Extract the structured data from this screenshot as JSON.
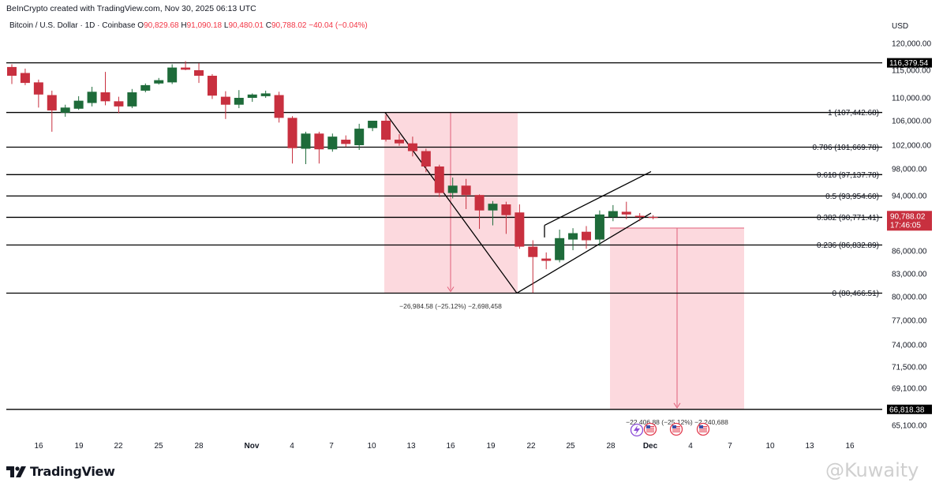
{
  "header": {
    "credit": "BeInCrypto created with TradingView.com, Nov 30, 2025 06:13 UTC",
    "symbol": "Bitcoin / U.S. Dollar · 1D · Coinbase",
    "open_label": "O",
    "open": "90,829.68",
    "high_label": "H",
    "high": "91,090.18",
    "low_label": "L",
    "low": "90,480.01",
    "close_label": "C",
    "close": "90,788.02",
    "change": "−40.04 (−0.04%)"
  },
  "brand": "TradingView",
  "watermark": "@Kuwaity",
  "colors": {
    "up": "#1e6b3a",
    "down": "#c8303f",
    "range_fill": "#fcd9de",
    "range_arrow": "#e0607a",
    "line": "#000000",
    "price_tag": "#c8303f"
  },
  "chart_data": {
    "type": "candlestick",
    "currency_label": "USD",
    "y_ticks": [
      "120,000.00",
      "115,000.00",
      "110,000.00",
      "106,000.00",
      "102,000.00",
      "98,000.00",
      "94,000.00",
      "90,000.00",
      "86,000.00",
      "83,000.00",
      "80,000.00",
      "77,000.00",
      "74,000.00",
      "71,500.00",
      "69,100.00",
      "65,100.00"
    ],
    "x_ticks": [
      "16",
      "19",
      "22",
      "25",
      "28",
      "Nov",
      "4",
      "7",
      "10",
      "13",
      "16",
      "19",
      "22",
      "25",
      "28",
      "Dec",
      "4",
      "7",
      "10",
      "13",
      "16"
    ],
    "candles": [
      {
        "o": 115600,
        "h": 116100,
        "l": 112500,
        "c": 114000
      },
      {
        "o": 114500,
        "h": 115300,
        "l": 112300,
        "c": 112700
      },
      {
        "o": 112800,
        "h": 113300,
        "l": 108300,
        "c": 110600
      },
      {
        "o": 110500,
        "h": 111300,
        "l": 104200,
        "c": 107800
      },
      {
        "o": 107400,
        "h": 108800,
        "l": 106700,
        "c": 108300
      },
      {
        "o": 108100,
        "h": 110300,
        "l": 107900,
        "c": 109500
      },
      {
        "o": 109100,
        "h": 112000,
        "l": 108500,
        "c": 111100
      },
      {
        "o": 111000,
        "h": 114700,
        "l": 108700,
        "c": 109400
      },
      {
        "o": 109400,
        "h": 110200,
        "l": 107300,
        "c": 108500
      },
      {
        "o": 108500,
        "h": 111600,
        "l": 108200,
        "c": 111000
      },
      {
        "o": 111300,
        "h": 112600,
        "l": 111000,
        "c": 112300
      },
      {
        "o": 112600,
        "h": 113600,
        "l": 112400,
        "c": 113200
      },
      {
        "o": 112800,
        "h": 116100,
        "l": 112500,
        "c": 115500
      },
      {
        "o": 115500,
        "h": 116700,
        "l": 115000,
        "c": 115100
      },
      {
        "o": 115000,
        "h": 116300,
        "l": 112700,
        "c": 114000
      },
      {
        "o": 114000,
        "h": 114300,
        "l": 109800,
        "c": 110400
      },
      {
        "o": 110200,
        "h": 111200,
        "l": 106300,
        "c": 108800
      },
      {
        "o": 108800,
        "h": 111400,
        "l": 108200,
        "c": 110000
      },
      {
        "o": 110000,
        "h": 110800,
        "l": 109300,
        "c": 110600
      },
      {
        "o": 110300,
        "h": 111300,
        "l": 110000,
        "c": 110800
      },
      {
        "o": 110500,
        "h": 111100,
        "l": 105700,
        "c": 106500
      },
      {
        "o": 106500,
        "h": 106800,
        "l": 98900,
        "c": 101500
      },
      {
        "o": 101400,
        "h": 104200,
        "l": 98800,
        "c": 103900
      },
      {
        "o": 103900,
        "h": 104200,
        "l": 98900,
        "c": 101300
      },
      {
        "o": 101300,
        "h": 103900,
        "l": 100900,
        "c": 103400
      },
      {
        "o": 102900,
        "h": 103600,
        "l": 101700,
        "c": 102200
      },
      {
        "o": 102000,
        "h": 105500,
        "l": 101200,
        "c": 104700
      },
      {
        "o": 104800,
        "h": 106000,
        "l": 104300,
        "c": 106000
      },
      {
        "o": 106000,
        "h": 107000,
        "l": 102600,
        "c": 102900
      },
      {
        "o": 102900,
        "h": 103800,
        "l": 101900,
        "c": 102300
      },
      {
        "o": 102300,
        "h": 103400,
        "l": 100100,
        "c": 101000
      },
      {
        "o": 101000,
        "h": 101400,
        "l": 97500,
        "c": 98400
      },
      {
        "o": 98400,
        "h": 98700,
        "l": 93800,
        "c": 94400
      },
      {
        "o": 94400,
        "h": 96700,
        "l": 93600,
        "c": 95500
      },
      {
        "o": 95500,
        "h": 96500,
        "l": 92000,
        "c": 94100
      },
      {
        "o": 94100,
        "h": 94200,
        "l": 89100,
        "c": 91800
      },
      {
        "o": 91800,
        "h": 93200,
        "l": 89600,
        "c": 92800
      },
      {
        "o": 92700,
        "h": 93100,
        "l": 88400,
        "c": 91100
      },
      {
        "o": 91500,
        "h": 92700,
        "l": 86300,
        "c": 86600
      },
      {
        "o": 86600,
        "h": 87500,
        "l": 80500,
        "c": 85200
      },
      {
        "o": 85000,
        "h": 85800,
        "l": 83600,
        "c": 84700
      },
      {
        "o": 84800,
        "h": 89000,
        "l": 84500,
        "c": 87800
      },
      {
        "o": 87600,
        "h": 89200,
        "l": 86100,
        "c": 88500
      },
      {
        "o": 88700,
        "h": 89500,
        "l": 86300,
        "c": 87500
      },
      {
        "o": 87600,
        "h": 91800,
        "l": 86700,
        "c": 91200
      },
      {
        "o": 90800,
        "h": 92600,
        "l": 90200,
        "c": 91700
      },
      {
        "o": 91600,
        "h": 93100,
        "l": 90500,
        "c": 91200
      },
      {
        "o": 91000,
        "h": 91400,
        "l": 90200,
        "c": 90800
      },
      {
        "o": 90830,
        "h": 91090,
        "l": 90480,
        "c": 90788
      }
    ],
    "fib_levels": [
      {
        "ratio": "1",
        "price": 107442.68,
        "label": "1 (107,442.68)"
      },
      {
        "ratio": "0.786",
        "price": 101669.78,
        "label": "0.786 (101,669.78)"
      },
      {
        "ratio": "0.618",
        "price": 97137.78,
        "label": "0.618 (97,137.78)"
      },
      {
        "ratio": "0.5",
        "price": 93954.6,
        "label": "0.5 (93,954.60)"
      },
      {
        "ratio": "0.382",
        "price": 90771.41,
        "label": "0.382 (90,771.41)"
      },
      {
        "ratio": "0.236",
        "price": 86832.89,
        "label": "0.236 (86,832.89)"
      },
      {
        "ratio": "0",
        "price": 80466.51,
        "label": "0 (80,466.51)"
      }
    ],
    "h_lines": [
      {
        "price": 116379.54,
        "label": "116,379.54"
      },
      {
        "price": 66818.38,
        "label": "66,818.38"
      }
    ],
    "current_price": {
      "price": 90788.02,
      "label": "90,788.02",
      "countdown": "17:46:05"
    },
    "measure_1": {
      "text": "−26,984.58 (−25.12%) −2,698,458"
    },
    "measure_2": {
      "text": "−22,406.88 (−25.12%) −2,240,688"
    }
  }
}
